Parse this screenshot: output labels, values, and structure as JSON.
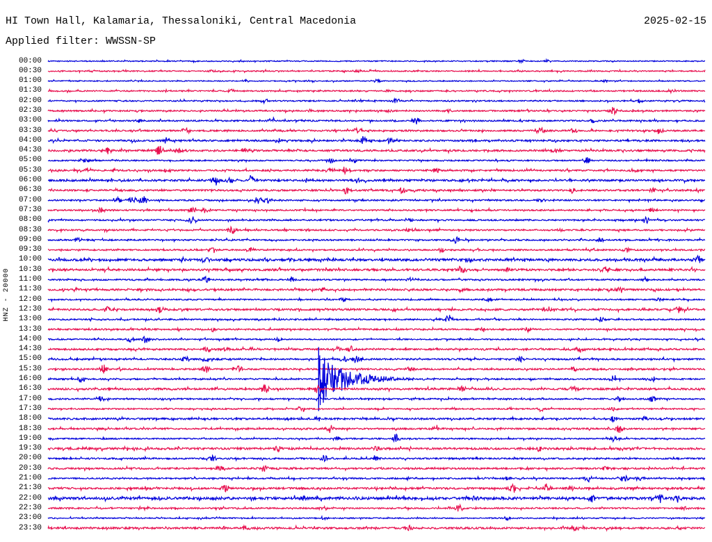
{
  "header": {
    "title": "HI Town Hall, Kalamaria, Thessaloniki, Central Macedonia",
    "date": "2025-02-15",
    "filter_label": "Applied filter: WWSSN-SP"
  },
  "axis": {
    "left_vertical_label": "HNZ - 20000"
  },
  "chart_data": {
    "type": "line",
    "subtype": "helicorder_dayplot",
    "station": "HI Town Hall, Kalamaria, Thessaloniki, Central Macedonia",
    "channel": "HNZ",
    "amplitude_scale": 20000,
    "date": "2025-02-15",
    "applied_filter": "WWSSN-SP",
    "minutes_per_row": 30,
    "grid": false,
    "legend_position": "none",
    "trace_colors": {
      "blue": "#0000DC",
      "red": "#E8104F"
    },
    "major_event": {
      "row_time": "16:00",
      "position_fraction": 0.412,
      "approx_event_time": "16:12",
      "amp": 40,
      "tau": 0.04,
      "spikes": [
        [
          0.412,
          46,
          46
        ],
        [
          0.419,
          22,
          34
        ]
      ],
      "description": "large clipped seismic event with sharp onset and exponentially decaying coda"
    },
    "rows": [
      {
        "time": "00:00",
        "color": "blue",
        "noise": 0.7,
        "bursts": [
          [
            0.72,
            2.5
          ],
          [
            0.76,
            2
          ]
        ]
      },
      {
        "time": "00:30",
        "color": "red",
        "noise": 0.8,
        "bursts": [
          [
            0.07,
            2
          ],
          [
            0.25,
            2
          ],
          [
            0.47,
            2.5
          ],
          [
            0.72,
            2
          ]
        ]
      },
      {
        "time": "01:00",
        "color": "blue",
        "noise": 0.7,
        "bursts": [
          [
            0.3,
            2
          ],
          [
            0.5,
            2
          ],
          [
            0.85,
            2.5
          ]
        ]
      },
      {
        "time": "01:30",
        "color": "red",
        "noise": 0.9,
        "bursts": [
          [
            0.28,
            3
          ],
          [
            0.52,
            2
          ],
          [
            0.95,
            3
          ]
        ]
      },
      {
        "time": "02:00",
        "color": "blue",
        "noise": 0.9,
        "bursts": [
          [
            0.33,
            3
          ],
          [
            0.53,
            5
          ],
          [
            0.9,
            2.5
          ]
        ]
      },
      {
        "time": "02:30",
        "color": "red",
        "noise": 1.0,
        "bursts": [
          [
            0.52,
            3
          ],
          [
            0.61,
            3
          ],
          [
            0.86,
            6
          ]
        ]
      },
      {
        "time": "03:00",
        "color": "blue",
        "noise": 1.0,
        "bursts": [
          [
            0.14,
            3
          ],
          [
            0.34,
            4
          ],
          [
            0.56,
            6
          ],
          [
            0.83,
            3
          ]
        ]
      },
      {
        "time": "03:30",
        "color": "red",
        "noise": 1.1,
        "bursts": [
          [
            0.21,
            5
          ],
          [
            0.47,
            5
          ],
          [
            0.75,
            6
          ],
          [
            0.8,
            4
          ],
          [
            0.93,
            5
          ]
        ]
      },
      {
        "time": "04:00",
        "color": "blue",
        "noise": 1.2,
        "bursts": [
          [
            0.18,
            5
          ],
          [
            0.35,
            3
          ],
          [
            0.48,
            6
          ],
          [
            0.52,
            4
          ]
        ]
      },
      {
        "time": "04:30",
        "color": "red",
        "noise": 1.3,
        "bursts": [
          [
            0.09,
            5
          ],
          [
            0.17,
            7
          ],
          [
            0.2,
            5
          ],
          [
            0.3,
            4
          ],
          [
            0.77,
            4
          ]
        ]
      },
      {
        "time": "05:00",
        "color": "blue",
        "noise": 0.9,
        "bursts": [
          [
            0.054,
            5
          ],
          [
            0.43,
            4
          ],
          [
            0.465,
            4
          ],
          [
            0.82,
            5
          ]
        ]
      },
      {
        "time": "05:30",
        "color": "red",
        "noise": 1.1,
        "bursts": [
          [
            0.06,
            4
          ],
          [
            0.18,
            3
          ],
          [
            0.43,
            4
          ],
          [
            0.45,
            5
          ],
          [
            0.59,
            5
          ],
          [
            0.89,
            4
          ]
        ]
      },
      {
        "time": "06:00",
        "color": "blue",
        "noise": 1.3,
        "bursts": [
          [
            0.255,
            6
          ],
          [
            0.277,
            5
          ],
          [
            0.31,
            7
          ],
          [
            0.47,
            4
          ]
        ]
      },
      {
        "time": "06:30",
        "color": "red",
        "noise": 1.2,
        "bursts": [
          [
            0.454,
            6
          ],
          [
            0.54,
            4
          ],
          [
            0.8,
            4
          ],
          [
            0.92,
            3
          ]
        ]
      },
      {
        "time": "07:00",
        "color": "blue",
        "noise": 1.0,
        "bursts": [
          [
            0.108,
            4
          ],
          [
            0.128,
            5
          ],
          [
            0.145,
            6
          ],
          [
            0.32,
            6
          ],
          [
            0.335,
            5
          ],
          [
            0.75,
            3
          ]
        ]
      },
      {
        "time": "07:30",
        "color": "red",
        "noise": 1.0,
        "bursts": [
          [
            0.08,
            4
          ],
          [
            0.22,
            5
          ],
          [
            0.24,
            5
          ],
          [
            0.92,
            4
          ]
        ]
      },
      {
        "time": "08:00",
        "color": "blue",
        "noise": 1.0,
        "bursts": [
          [
            0.22,
            6
          ],
          [
            0.55,
            3
          ],
          [
            0.91,
            5
          ]
        ]
      },
      {
        "time": "08:30",
        "color": "red",
        "noise": 1.0,
        "bursts": [
          [
            0.28,
            6
          ],
          [
            0.55,
            3
          ],
          [
            0.78,
            3
          ]
        ]
      },
      {
        "time": "09:00",
        "color": "blue",
        "noise": 1.0,
        "bursts": [
          [
            0.045,
            4
          ],
          [
            0.62,
            5
          ],
          [
            0.84,
            4
          ]
        ]
      },
      {
        "time": "09:30",
        "color": "red",
        "noise": 1.0,
        "bursts": [
          [
            0.25,
            5
          ],
          [
            0.31,
            4
          ],
          [
            0.6,
            4
          ],
          [
            0.88,
            3
          ]
        ]
      },
      {
        "time": "10:00",
        "color": "blue",
        "noise": 1.6,
        "bursts": [
          [
            0.24,
            4
          ],
          [
            0.37,
            4
          ],
          [
            0.64,
            4
          ],
          [
            0.99,
            5
          ]
        ]
      },
      {
        "time": "10:30",
        "color": "red",
        "noise": 1.4,
        "bursts": [
          [
            0.63,
            4
          ],
          [
            0.7,
            4
          ],
          [
            0.85,
            4
          ]
        ]
      },
      {
        "time": "11:00",
        "color": "blue",
        "noise": 1.0,
        "bursts": [
          [
            0.24,
            5
          ],
          [
            0.37,
            5
          ],
          [
            0.55,
            4
          ],
          [
            0.91,
            4
          ]
        ]
      },
      {
        "time": "11:30",
        "color": "red",
        "noise": 1.3,
        "bursts": [
          [
            0.42,
            3
          ],
          [
            0.63,
            4
          ],
          [
            0.87,
            5
          ]
        ]
      },
      {
        "time": "12:00",
        "color": "blue",
        "noise": 0.9,
        "bursts": [
          [
            0.45,
            4
          ],
          [
            0.67,
            4
          ],
          [
            0.93,
            3
          ]
        ]
      },
      {
        "time": "12:30",
        "color": "red",
        "noise": 1.3,
        "bursts": [
          [
            0.09,
            5
          ],
          [
            0.17,
            5
          ],
          [
            0.76,
            5
          ],
          [
            0.96,
            5
          ]
        ]
      },
      {
        "time": "13:00",
        "color": "blue",
        "noise": 1.0,
        "bursts": [
          [
            0.61,
            6
          ],
          [
            0.84,
            5
          ]
        ]
      },
      {
        "time": "13:30",
        "color": "red",
        "noise": 1.1,
        "bursts": [
          [
            0.25,
            3
          ],
          [
            0.66,
            4
          ],
          [
            0.73,
            5
          ]
        ]
      },
      {
        "time": "14:00",
        "color": "blue",
        "noise": 0.9,
        "bursts": [
          [
            0.125,
            4
          ],
          [
            0.148,
            6
          ],
          [
            0.35,
            3
          ]
        ]
      },
      {
        "time": "14:30",
        "color": "red",
        "noise": 1.2,
        "bursts": [
          [
            0.243,
            5
          ],
          [
            0.268,
            4
          ],
          [
            0.44,
            6
          ],
          [
            0.46,
            5
          ],
          [
            0.81,
            4
          ]
        ]
      },
      {
        "time": "15:00",
        "color": "blue",
        "noise": 1.1,
        "bursts": [
          [
            0.21,
            4
          ],
          [
            0.24,
            5
          ],
          [
            0.45,
            5
          ],
          [
            0.47,
            6
          ],
          [
            0.72,
            4
          ]
        ]
      },
      {
        "time": "15:30",
        "color": "red",
        "noise": 1.1,
        "bursts": [
          [
            0.085,
            6
          ],
          [
            0.24,
            5
          ],
          [
            0.29,
            5
          ],
          [
            0.55,
            3
          ],
          [
            0.8,
            4
          ]
        ]
      },
      {
        "time": "16:00",
        "color": "blue",
        "noise": 1.0,
        "bursts": [
          [
            0.05,
            4
          ],
          [
            0.86,
            5
          ],
          [
            0.92,
            4
          ]
        ]
      },
      {
        "time": "16:30",
        "color": "red",
        "noise": 1.3,
        "bursts": [
          [
            0.33,
            6
          ],
          [
            0.41,
            5
          ],
          [
            0.63,
            4
          ],
          [
            0.8,
            5
          ]
        ]
      },
      {
        "time": "17:00",
        "color": "blue",
        "noise": 1.0,
        "bursts": [
          [
            0.08,
            5
          ],
          [
            0.413,
            9,
            0.0015
          ],
          [
            0.87,
            5
          ],
          [
            0.92,
            5
          ]
        ]
      },
      {
        "time": "17:30",
        "color": "red",
        "noise": 0.9,
        "bursts": [
          [
            0.385,
            5
          ],
          [
            0.75,
            3
          ],
          [
            0.86,
            3
          ]
        ]
      },
      {
        "time": "18:00",
        "color": "blue",
        "noise": 1.2,
        "bursts": [
          [
            0.41,
            4
          ],
          [
            0.86,
            4
          ],
          [
            0.91,
            4
          ]
        ]
      },
      {
        "time": "18:30",
        "color": "red",
        "noise": 1.1,
        "bursts": [
          [
            0.43,
            6
          ],
          [
            0.59,
            4
          ],
          [
            0.87,
            6
          ]
        ]
      },
      {
        "time": "19:00",
        "color": "blue",
        "noise": 0.9,
        "bursts": [
          [
            0.44,
            4
          ],
          [
            0.53,
            7
          ],
          [
            0.86,
            4
          ]
        ]
      },
      {
        "time": "19:30",
        "color": "red",
        "noise": 1.4,
        "bursts": [
          [
            0.35,
            4
          ],
          [
            0.5,
            4
          ],
          [
            0.75,
            4
          ]
        ]
      },
      {
        "time": "20:00",
        "color": "blue",
        "noise": 1.1,
        "bursts": [
          [
            0.25,
            5
          ],
          [
            0.42,
            5
          ],
          [
            0.5,
            5
          ]
        ]
      },
      {
        "time": "20:30",
        "color": "red",
        "noise": 1.2,
        "bursts": [
          [
            0.26,
            6
          ],
          [
            0.33,
            5
          ],
          [
            0.85,
            3
          ]
        ]
      },
      {
        "time": "21:00",
        "color": "blue",
        "noise": 1.0,
        "bursts": [
          [
            0.7,
            4
          ],
          [
            0.823,
            5
          ],
          [
            0.877,
            5
          ],
          [
            0.9,
            4
          ]
        ]
      },
      {
        "time": "21:30",
        "color": "red",
        "noise": 1.3,
        "bursts": [
          [
            0.27,
            6
          ],
          [
            0.707,
            5
          ],
          [
            0.76,
            6
          ],
          [
            0.795,
            5
          ]
        ]
      },
      {
        "time": "22:00",
        "color": "blue",
        "noise": 1.8,
        "bursts": [
          [
            0.39,
            4
          ],
          [
            0.648,
            3
          ],
          [
            0.826,
            7
          ],
          [
            0.93,
            6
          ],
          [
            0.957,
            4
          ]
        ]
      },
      {
        "time": "22:30",
        "color": "red",
        "noise": 1.0,
        "bursts": [
          [
            0.42,
            3
          ],
          [
            0.625,
            6
          ],
          [
            0.97,
            3
          ]
        ]
      },
      {
        "time": "23:00",
        "color": "blue",
        "noise": 0.8,
        "bursts": [
          [
            0.42,
            3
          ],
          [
            0.7,
            3
          ]
        ]
      },
      {
        "time": "23:30",
        "color": "red",
        "noise": 1.3,
        "bursts": [
          [
            0.3,
            4
          ],
          [
            0.55,
            4
          ],
          [
            0.8,
            4
          ]
        ]
      }
    ]
  }
}
